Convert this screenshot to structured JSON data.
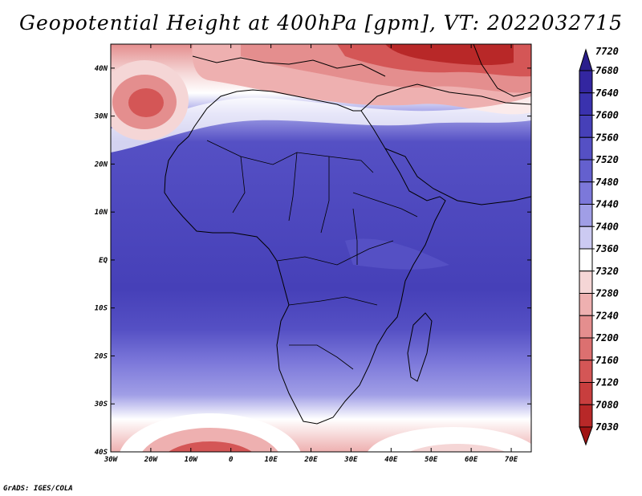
{
  "title": "Geopotential Height at 400hPa [gpm], VT: 2022032715",
  "credit": "GrADS: IGES/COLA",
  "map": {
    "lon_range": [
      -30,
      75
    ],
    "lat_range": [
      -40,
      45
    ],
    "lon_ticks": [
      "30W",
      "20W",
      "10W",
      "0",
      "10E",
      "20E",
      "30E",
      "40E",
      "50E",
      "60E",
      "70E"
    ],
    "lat_ticks": [
      "40N",
      "30N",
      "20N",
      "10N",
      "EQ",
      "10S",
      "20S",
      "30S",
      "40S"
    ]
  },
  "colorbar": {
    "max_label": "7720",
    "min_label": "7030",
    "top_color": "#2a1e8c",
    "bottom_color": "#a01414",
    "levels": [
      {
        "label": "7680",
        "color": "#3326a0"
      },
      {
        "label": "7640",
        "color": "#3a32ae"
      },
      {
        "label": "7600",
        "color": "#4640b8"
      },
      {
        "label": "7560",
        "color": "#5550c4"
      },
      {
        "label": "7520",
        "color": "#6460ce"
      },
      {
        "label": "7480",
        "color": "#7c78da"
      },
      {
        "label": "7440",
        "color": "#a09ee6"
      },
      {
        "label": "7400",
        "color": "#cccaf2"
      },
      {
        "label": "7360",
        "color": "#ffffff"
      },
      {
        "label": "7320",
        "color": "#f5d6d6"
      },
      {
        "label": "7280",
        "color": "#eeb0b0"
      },
      {
        "label": "7240",
        "color": "#e48e8e"
      },
      {
        "label": "7200",
        "color": "#dc7070"
      },
      {
        "label": "7160",
        "color": "#d45656"
      },
      {
        "label": "7120",
        "color": "#c83e3e"
      },
      {
        "label": "7080",
        "color": "#b82828"
      }
    ]
  },
  "field_colors": {
    "deep_blue": "#4640b8",
    "mid_blue": "#5550c4",
    "light_blue": "#7c78da",
    "pale_blue": "#cccaf2",
    "white": "#ffffff",
    "pink": "#eeb0b0",
    "red": "#d45656",
    "dark_red": "#b82828"
  }
}
